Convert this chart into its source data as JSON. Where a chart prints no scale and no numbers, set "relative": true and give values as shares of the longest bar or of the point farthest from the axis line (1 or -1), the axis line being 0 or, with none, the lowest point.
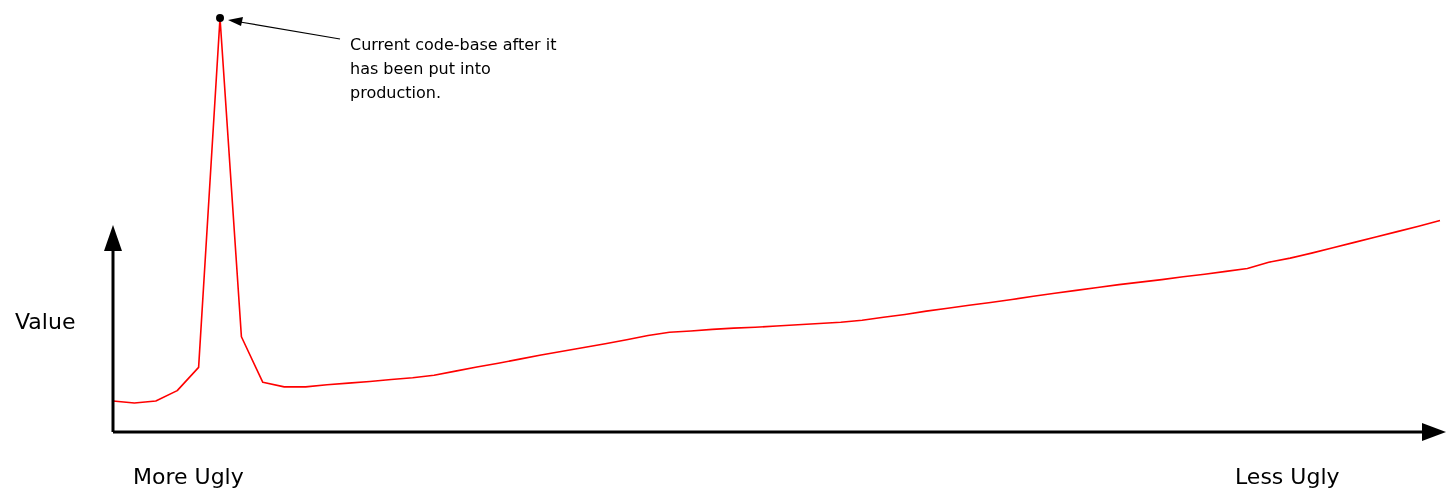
{
  "chart_data": {
    "type": "line",
    "relative": true,
    "ylabel": "Value",
    "annotations": [
      "Current code-base after it has been put into production.",
      "More Ugly",
      "Less Ugly"
    ],
    "categories": [
      null,
      null,
      null,
      null,
      null,
      null,
      null,
      null,
      null,
      null,
      null,
      null,
      null,
      null,
      null,
      null,
      null,
      null,
      null,
      null,
      null,
      null,
      null,
      null,
      null,
      null,
      null,
      null,
      null,
      null,
      null,
      null,
      null,
      null,
      null,
      null,
      null,
      null,
      null,
      null,
      null,
      null,
      null,
      null,
      null,
      null,
      null,
      null,
      null,
      null,
      null,
      null,
      null,
      null,
      null,
      null,
      null,
      null,
      null,
      null,
      null,
      null,
      null
    ],
    "series": [
      {
        "color": "#ff0000",
        "values": [
          0.075,
          0.07,
          0.075,
          0.1,
          0.156,
          1,
          0.23,
          0.12,
          0.109,
          0.109,
          0.114,
          0.118,
          0.122,
          0.127,
          0.131,
          0.137,
          0.147,
          0.157,
          0.166,
          0.176,
          0.186,
          0.195,
          0.204,
          0.213,
          0.223,
          0.233,
          0.241,
          0.244,
          0.248,
          0.251,
          0.253,
          0.256,
          0.259,
          0.262,
          0.265,
          0.27,
          0.277,
          0.284,
          0.292,
          0.299,
          0.306,
          0.313,
          0.32,
          0.328,
          0.335,
          0.342,
          0.349,
          0.356,
          0.362,
          0.368,
          0.375,
          0.381,
          0.388,
          0.395,
          0.41,
          0.42,
          0.432,
          0.445,
          0.458,
          0.471,
          0.484,
          0.497,
          0.511
        ]
      }
    ],
    "legend": false,
    "marker": "none",
    "line_style": "solid"
  }
}
